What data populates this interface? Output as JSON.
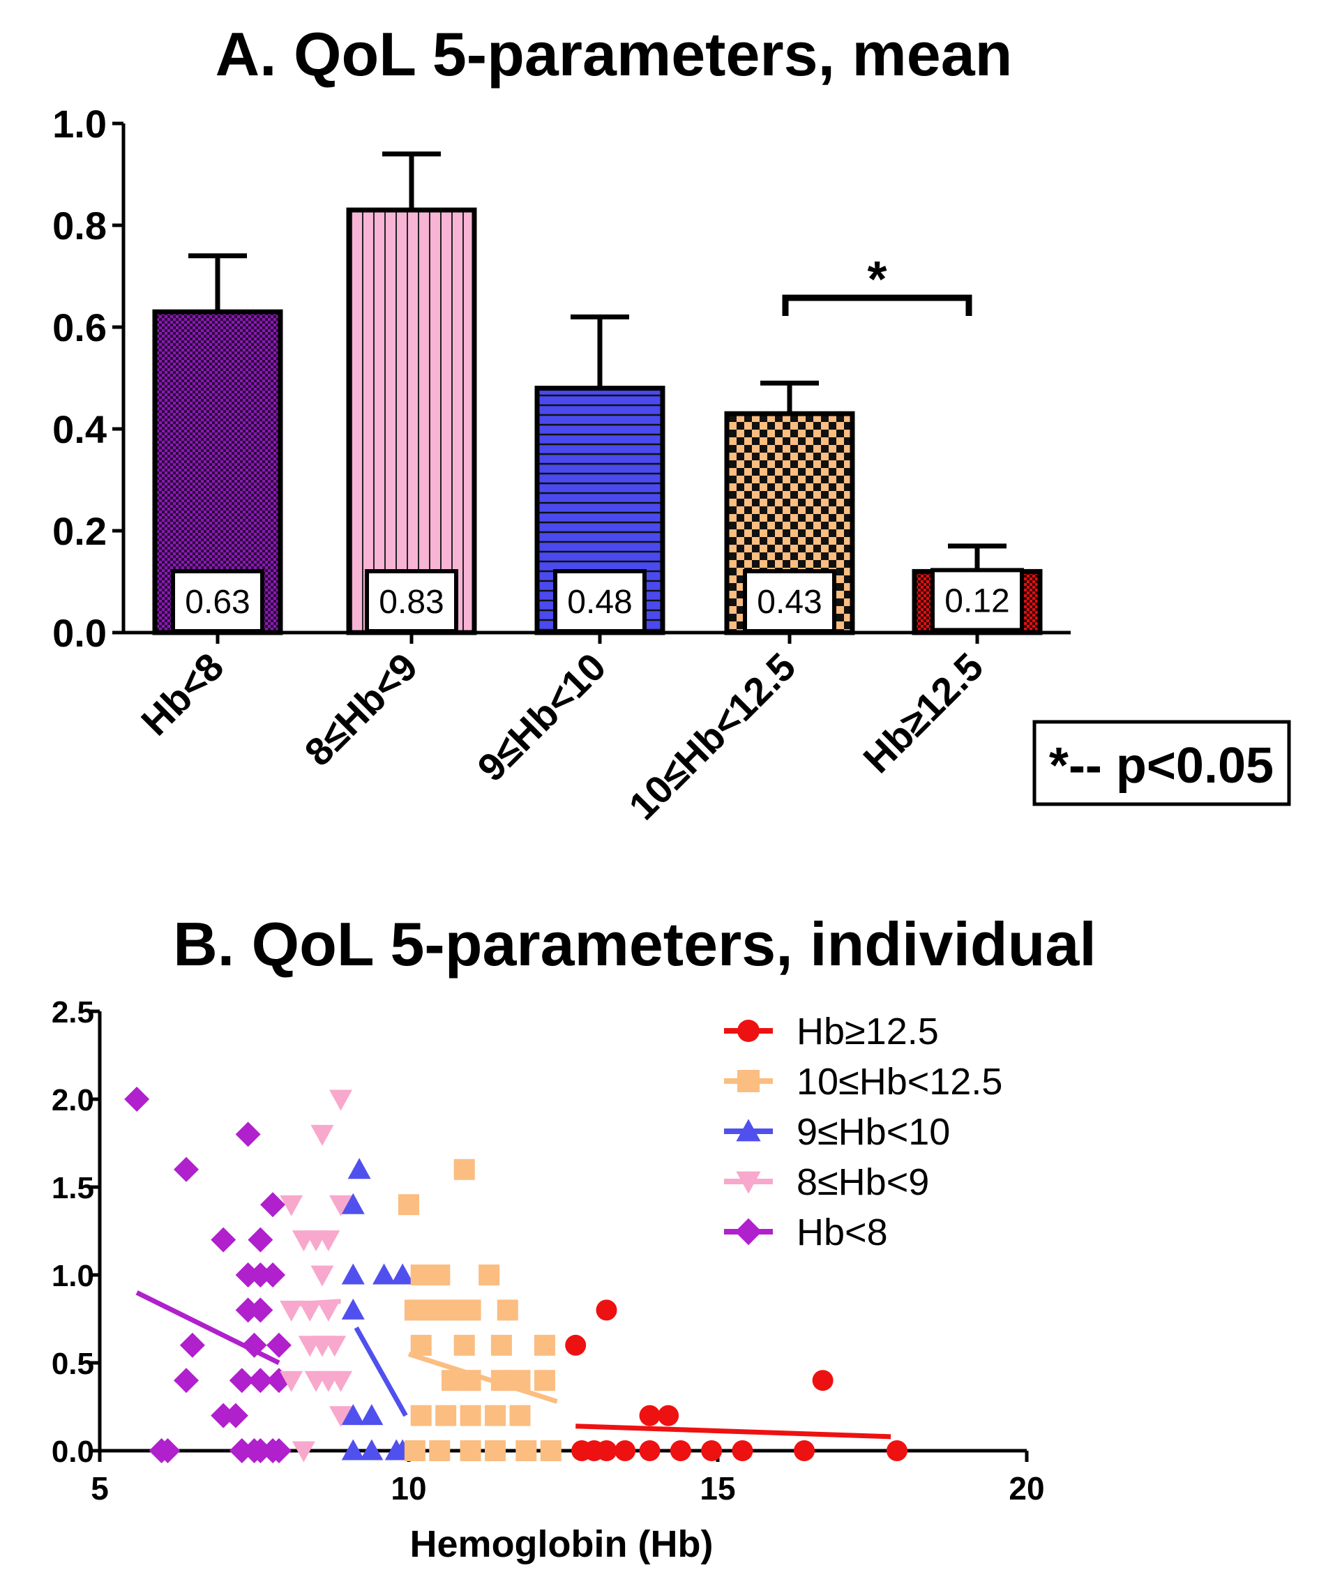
{
  "chart_data": [
    {
      "type": "bar",
      "title": "A. QoL 5-parameters, mean",
      "categories": [
        "Hb<8",
        "8≤Hb<9",
        "9≤Hb<10",
        "10≤Hb<12.5",
        "Hb≥12.5"
      ],
      "values": [
        0.63,
        0.83,
        0.48,
        0.43,
        0.12
      ],
      "value_labels": [
        "0.63",
        "0.83",
        "0.48",
        "0.43",
        "0.12"
      ],
      "error_upper": [
        0.74,
        0.94,
        0.62,
        0.49,
        0.17
      ],
      "ylim": [
        0,
        1.0
      ],
      "yticks": [
        "0.0",
        "0.2",
        "0.4",
        "0.6",
        "0.8",
        "1.0"
      ],
      "colors": [
        "#7a0fa0",
        "#f4b0d2",
        "#4a4aee",
        "#fbbd80",
        "#e01010"
      ],
      "significance": {
        "from": "10≤Hb<12.5",
        "to": "Hb≥12.5",
        "symbol": "*"
      },
      "note": "*-- p<0.05"
    },
    {
      "type": "scatter",
      "title": "B. QoL 5-parameters, individual",
      "xlabel": "Hemoglobin (Hb)",
      "ylabel": "",
      "xlim": [
        5,
        20
      ],
      "ylim": [
        0,
        2.5
      ],
      "xticks": [
        "5",
        "10",
        "15",
        "20"
      ],
      "yticks": [
        "0.0",
        "0.5",
        "1.0",
        "1.5",
        "2.0",
        "2.5"
      ],
      "legend_position": "top-right",
      "series": [
        {
          "name": "Hb≥12.5",
          "marker": "circle",
          "color": "#ee1111",
          "points": [
            [
              12.7,
              0.6
            ],
            [
              13.2,
              0.8
            ],
            [
              13.9,
              0.2
            ],
            [
              14.2,
              0.2
            ],
            [
              16.7,
              0.4
            ],
            [
              12.8,
              0
            ],
            [
              13.0,
              0
            ],
            [
              13.2,
              0
            ],
            [
              13.5,
              0
            ],
            [
              13.9,
              0
            ],
            [
              14.4,
              0
            ],
            [
              14.9,
              0
            ],
            [
              15.4,
              0
            ],
            [
              16.4,
              0
            ],
            [
              17.9,
              0
            ]
          ],
          "trend": [
            [
              12.7,
              0.14
            ],
            [
              17.8,
              0.08
            ]
          ]
        },
        {
          "name": "10≤Hb<12.5",
          "marker": "square",
          "color": "#fbbd80",
          "points": [
            [
              10.0,
              1.4
            ],
            [
              10.9,
              1.6
            ],
            [
              10.2,
              1.0
            ],
            [
              10.5,
              1.0
            ],
            [
              11.3,
              1.0
            ],
            [
              10.1,
              0.8
            ],
            [
              10.4,
              0.8
            ],
            [
              10.7,
              0.8
            ],
            [
              11.0,
              0.8
            ],
            [
              11.6,
              0.8
            ],
            [
              10.2,
              0.6
            ],
            [
              10.9,
              0.6
            ],
            [
              11.5,
              0.6
            ],
            [
              12.2,
              0.6
            ],
            [
              10.7,
              0.4
            ],
            [
              11.0,
              0.4
            ],
            [
              11.5,
              0.4
            ],
            [
              11.8,
              0.4
            ],
            [
              12.2,
              0.4
            ],
            [
              10.2,
              0.2
            ],
            [
              10.6,
              0.2
            ],
            [
              11.0,
              0.2
            ],
            [
              11.4,
              0.2
            ],
            [
              11.8,
              0.2
            ],
            [
              10.1,
              0
            ],
            [
              10.5,
              0
            ],
            [
              11.0,
              0
            ],
            [
              11.4,
              0
            ],
            [
              11.9,
              0
            ],
            [
              12.3,
              0
            ]
          ],
          "trend": [
            [
              10.0,
              0.55
            ],
            [
              12.4,
              0.28
            ]
          ]
        },
        {
          "name": "9≤Hb<10",
          "marker": "triangle-up",
          "color": "#5050ee",
          "points": [
            [
              9.2,
              1.6
            ],
            [
              9.1,
              1.4
            ],
            [
              9.1,
              1.0
            ],
            [
              9.6,
              1.0
            ],
            [
              9.9,
              1.0
            ],
            [
              9.1,
              0.8
            ],
            [
              9.1,
              0.2
            ],
            [
              9.4,
              0.2
            ],
            [
              9.1,
              0
            ],
            [
              9.4,
              0
            ],
            [
              9.8,
              0
            ],
            [
              9.9,
              0
            ]
          ],
          "trend": [
            [
              9.15,
              0.7
            ],
            [
              9.95,
              0.2
            ]
          ]
        },
        {
          "name": "8≤Hb<9",
          "marker": "triangle-down",
          "color": "#f8a8cc",
          "points": [
            [
              8.9,
              2.0
            ],
            [
              8.6,
              1.8
            ],
            [
              8.1,
              1.4
            ],
            [
              8.9,
              1.4
            ],
            [
              8.3,
              1.2
            ],
            [
              8.5,
              1.2
            ],
            [
              8.7,
              1.2
            ],
            [
              8.6,
              1.0
            ],
            [
              8.1,
              0.8
            ],
            [
              8.4,
              0.8
            ],
            [
              8.7,
              0.8
            ],
            [
              8.4,
              0.6
            ],
            [
              8.6,
              0.6
            ],
            [
              8.8,
              0.6
            ],
            [
              8.1,
              0.4
            ],
            [
              8.5,
              0.4
            ],
            [
              8.7,
              0.4
            ],
            [
              8.9,
              0.4
            ],
            [
              8.9,
              0.2
            ],
            [
              8.3,
              0
            ]
          ],
          "trend": [
            [
              8.0,
              0.83
            ],
            [
              8.9,
              0.85
            ]
          ]
        },
        {
          "name": "Hb<8",
          "marker": "diamond",
          "color": "#b020cc",
          "points": [
            [
              5.6,
              2.0
            ],
            [
              7.4,
              1.8
            ],
            [
              6.4,
              1.6
            ],
            [
              7.8,
              1.4
            ],
            [
              7.0,
              1.2
            ],
            [
              7.6,
              1.2
            ],
            [
              7.4,
              1.0
            ],
            [
              7.6,
              1.0
            ],
            [
              7.8,
              1.0
            ],
            [
              7.4,
              0.8
            ],
            [
              7.6,
              0.8
            ],
            [
              6.5,
              0.6
            ],
            [
              7.5,
              0.6
            ],
            [
              7.9,
              0.6
            ],
            [
              6.4,
              0.4
            ],
            [
              7.3,
              0.4
            ],
            [
              7.6,
              0.4
            ],
            [
              7.9,
              0.4
            ],
            [
              7.0,
              0.2
            ],
            [
              7.2,
              0.2
            ],
            [
              6.0,
              0
            ],
            [
              6.1,
              0
            ],
            [
              7.3,
              0
            ],
            [
              7.5,
              0
            ],
            [
              7.6,
              0
            ],
            [
              7.8,
              0
            ],
            [
              7.9,
              0
            ]
          ],
          "trend": [
            [
              5.6,
              0.9
            ],
            [
              7.9,
              0.5
            ]
          ]
        }
      ]
    }
  ]
}
